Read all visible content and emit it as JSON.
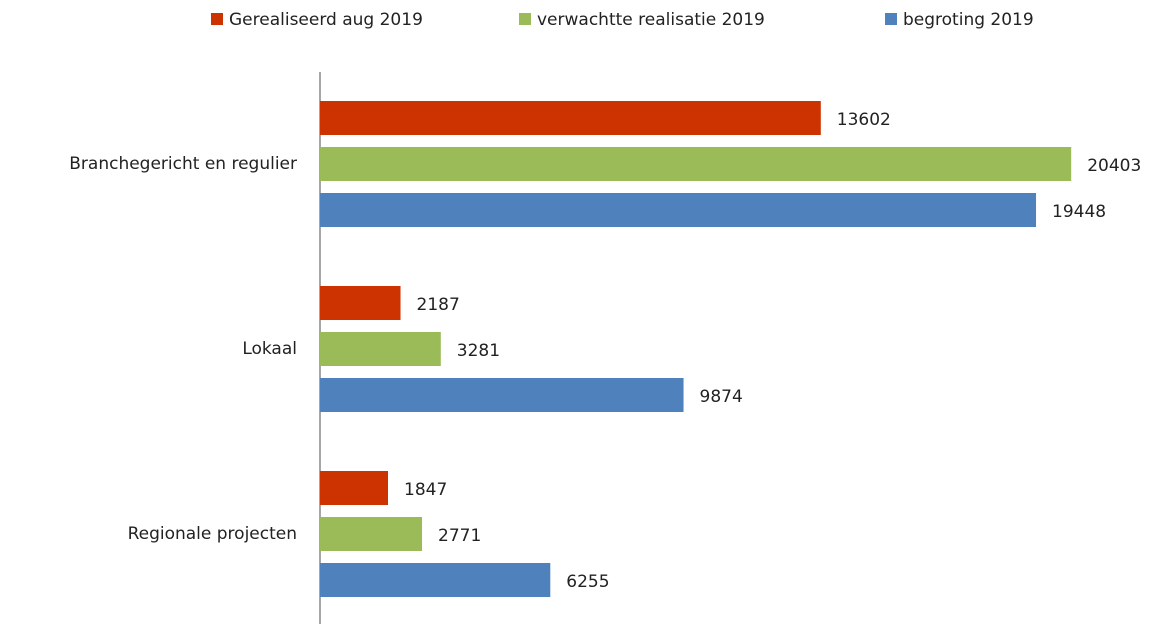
{
  "chart_data": {
    "type": "hbar",
    "categories": [
      "Branchegericht en regulier",
      "Lokaal",
      "Regionale projecten"
    ],
    "series": [
      {
        "name": "Gerealiseerd aug 2019",
        "color": "#cc3300",
        "values": [
          13602,
          2187,
          1847
        ]
      },
      {
        "name": "verwachtte realisatie 2019",
        "color": "#9bbb59",
        "values": [
          20403,
          3281,
          2771
        ]
      },
      {
        "name": "begroting 2019",
        "color": "#4f81bd",
        "values": [
          19448,
          9874,
          6255
        ]
      }
    ],
    "xlim": [
      0,
      22000
    ],
    "legend": "top"
  }
}
